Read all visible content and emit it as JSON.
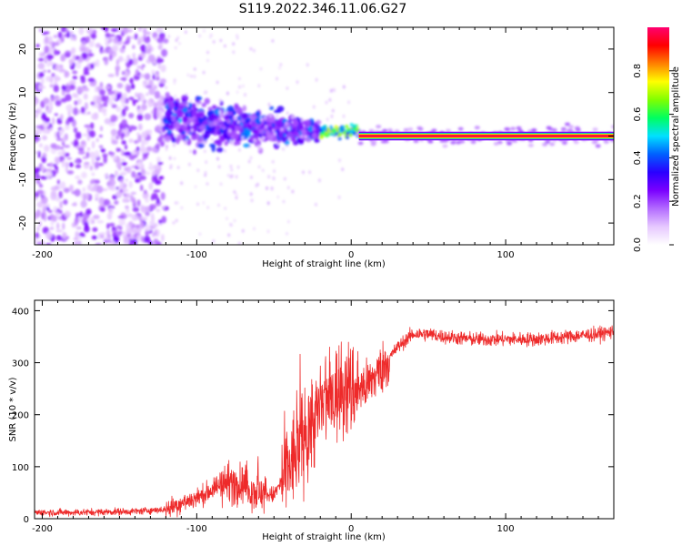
{
  "title": "S119.2022.346.11.06.G27",
  "chart_data": [
    {
      "type": "heatmap",
      "xlabel": "Height of straight line (km)",
      "ylabel": "Frequency (Hz)",
      "xlim": [
        -205,
        170
      ],
      "ylim": [
        -25,
        25
      ],
      "xticks": [
        -200,
        -100,
        0,
        100
      ],
      "yticks": [
        -20,
        -10,
        0,
        10,
        20
      ],
      "colorbar": {
        "label": "Normalized spectral amplitude",
        "range": [
          0,
          1
        ],
        "ticks": [
          "0.0",
          "0.2",
          "0.4",
          "0.6",
          "0.8"
        ],
        "colors": [
          "#ffffff",
          "#e6c8ff",
          "#b36bff",
          "#7a00ff",
          "#2a00ff",
          "#0060ff",
          "#00e0ff",
          "#00ff60",
          "#80ff00",
          "#ffff00",
          "#ff8000",
          "#ff0000",
          "#ff0070"
        ]
      },
      "regions": [
        {
          "x": [
            -205,
            -120
          ],
          "description": "noisy scattered spectrum",
          "freq_spread_hz": 25,
          "amplitude": 0.05
        },
        {
          "x": [
            -120,
            -20
          ],
          "description": "noisy tone converging to 0 Hz",
          "freq_spread_hz": [
            6,
            2
          ],
          "amplitude": 0.2
        },
        {
          "x": [
            -20,
            5
          ],
          "description": "near carrier",
          "freq_hz": 1,
          "amplitude": 0.6
        },
        {
          "x": [
            5,
            170
          ],
          "description": "clean carrier line",
          "freq_hz": 0,
          "amplitude": 1.0
        }
      ]
    },
    {
      "type": "line",
      "xlabel": "Height of straight line (km)",
      "ylabel": "SNR (10 * v/v)",
      "xlim": [
        -205,
        170
      ],
      "ylim": [
        0,
        420
      ],
      "xticks": [
        -200,
        -100,
        0,
        100
      ],
      "yticks": [
        0,
        100,
        200,
        300,
        400
      ],
      "color": "#ee2a2a",
      "series": [
        {
          "x": [
            -205,
            -180,
            -160,
            -140,
            -120,
            -110,
            -100,
            -90,
            -80,
            -70,
            -60,
            -50,
            -40,
            -30,
            -20,
            -10,
            0,
            10,
            20,
            25,
            30,
            40,
            50,
            60,
            80,
            100,
            120,
            140,
            160,
            170
          ],
          "y": [
            12,
            12,
            13,
            14,
            18,
            30,
            40,
            55,
            70,
            65,
            50,
            45,
            100,
            160,
            210,
            240,
            250,
            255,
            290,
            310,
            330,
            355,
            355,
            350,
            345,
            345,
            345,
            350,
            355,
            360
          ]
        }
      ]
    }
  ]
}
